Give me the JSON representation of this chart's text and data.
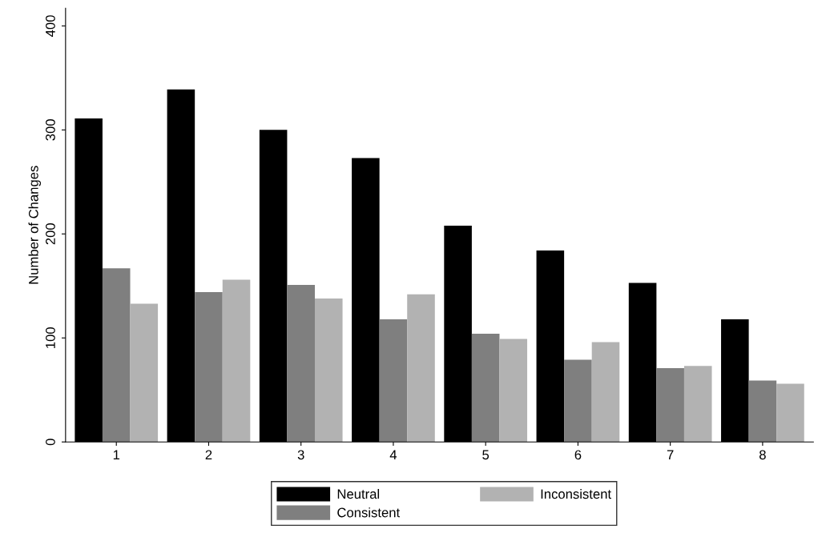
{
  "chart_data": {
    "type": "bar",
    "ylabel": "Number of Changes",
    "categories": [
      "1",
      "2",
      "3",
      "4",
      "5",
      "6",
      "7",
      "8"
    ],
    "series": [
      {
        "name": "Neutral",
        "color": "#000000",
        "values": [
          311,
          339,
          300,
          273,
          208,
          184,
          153,
          118
        ]
      },
      {
        "name": "Consistent",
        "color": "#7f7f7f",
        "values": [
          167,
          144,
          151,
          118,
          104,
          79,
          71,
          59
        ]
      },
      {
        "name": "Inconsistent",
        "color": "#b2b2b2",
        "values": [
          133,
          156,
          138,
          142,
          99,
          96,
          73,
          56
        ]
      }
    ],
    "ylim": [
      0,
      417
    ],
    "yticks": [
      0,
      100,
      200,
      300,
      400
    ],
    "grid": false,
    "legend": "bottom"
  }
}
